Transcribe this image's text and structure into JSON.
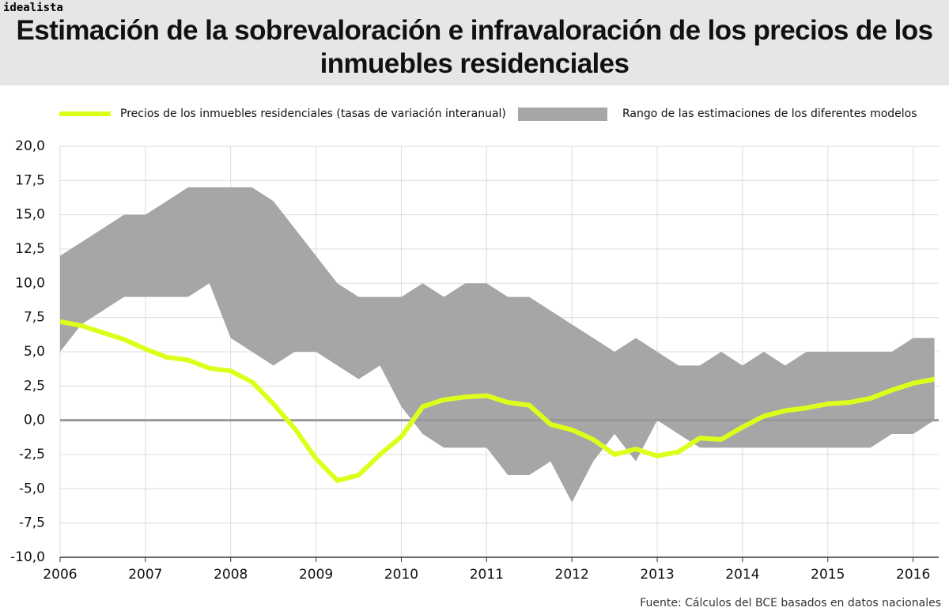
{
  "brand": "idealista",
  "chart_data": {
    "type": "line",
    "title": "Estimación de la sobrevaloración e infravaloración de los precios de los inmuebles residenciales",
    "source": "Fuente: Cálculos del BCE basados en datos nacionales",
    "x": [
      2006,
      2006.25,
      2006.5,
      2006.75,
      2007,
      2007.25,
      2007.5,
      2007.75,
      2008,
      2008.25,
      2008.5,
      2008.75,
      2009,
      2009.25,
      2009.5,
      2009.75,
      2010,
      2010.25,
      2010.5,
      2010.75,
      2011,
      2011.25,
      2011.5,
      2011.75,
      2012,
      2012.25,
      2012.5,
      2012.75,
      2013,
      2013.25,
      2013.5,
      2013.75,
      2014,
      2014.25,
      2014.5,
      2014.75,
      2015,
      2015.25,
      2015.5,
      2015.75,
      2016,
      2016.25
    ],
    "series": [
      {
        "name": "Rango de las estimaciones de los diferentes modelos",
        "type": "band",
        "color": "#a6a6a6",
        "upper": [
          12,
          13,
          14,
          15,
          15,
          16,
          17,
          17,
          17,
          17,
          16,
          14,
          12,
          10,
          9,
          9,
          9,
          10,
          9,
          10,
          10,
          9,
          9,
          8,
          7,
          6,
          5,
          6,
          5,
          4,
          4,
          5,
          4,
          5,
          4,
          5,
          5,
          5,
          5,
          5,
          6,
          6
        ],
        "lower": [
          5,
          7,
          8,
          9,
          9,
          9,
          9,
          10,
          6,
          5,
          4,
          5,
          5,
          4,
          3,
          4,
          1,
          -1,
          -2,
          -2,
          -2,
          -4,
          -4,
          -3,
          -6,
          -3,
          -1,
          -3,
          0,
          -1,
          -2,
          -2,
          -2,
          -2,
          -2,
          -2,
          -2,
          -2,
          -2,
          -1,
          -1,
          0
        ]
      },
      {
        "name": "Precios de los inmuebles residenciales (tasas de variación interanual)",
        "type": "line",
        "color": "#ddff1a",
        "values": [
          7.2,
          6.9,
          6.4,
          5.9,
          5.2,
          4.6,
          4.4,
          3.8,
          3.6,
          2.8,
          1.2,
          -0.6,
          -2.8,
          -4.4,
          -4.0,
          -2.5,
          -1.2,
          1.0,
          1.5,
          1.7,
          1.8,
          1.3,
          1.1,
          -0.3,
          -0.7,
          -1.4,
          -2.5,
          -2.1,
          -2.6,
          -2.3,
          -1.3,
          -1.4,
          -0.5,
          0.3,
          0.7,
          0.9,
          1.2,
          1.3,
          1.6,
          2.2,
          2.7,
          3.0
        ]
      }
    ],
    "xlim": [
      2006,
      2016.3
    ],
    "xticks": [
      2006,
      2007,
      2008,
      2009,
      2010,
      2011,
      2012,
      2013,
      2014,
      2015,
      2016
    ],
    "ylim": [
      -10,
      20
    ],
    "yticks": [
      {
        "value": -10,
        "label": "-10,0"
      },
      {
        "value": -7.5,
        "label": "-7,5"
      },
      {
        "value": -5,
        "label": "-5,0"
      },
      {
        "value": -2.5,
        "label": "-2,5"
      },
      {
        "value": 0,
        "label": "0,0"
      },
      {
        "value": 2.5,
        "label": "2,5"
      },
      {
        "value": 5,
        "label": "5,0"
      },
      {
        "value": 7.5,
        "label": "7,5"
      },
      {
        "value": 10,
        "label": "10,0"
      },
      {
        "value": 12.5,
        "label": "12,5"
      },
      {
        "value": 15,
        "label": "15,0"
      },
      {
        "value": 17.5,
        "label": "17,5"
      },
      {
        "value": 20,
        "label": "20,0"
      }
    ],
    "grid": true,
    "zero_line": true
  }
}
